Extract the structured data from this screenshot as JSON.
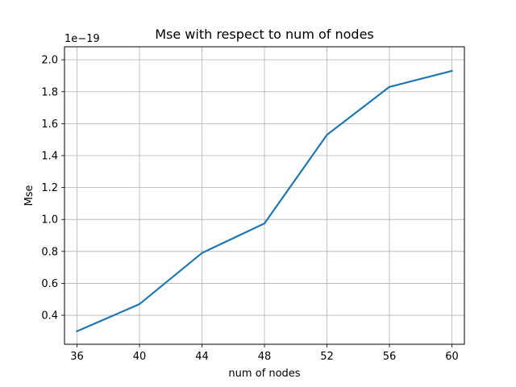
{
  "chart_data": {
    "type": "line",
    "title": "Mse with respect to num of nodes",
    "xlabel": "num of nodes",
    "ylabel": "Mse",
    "y_offset_text": "1e−19",
    "x": [
      36,
      40,
      44,
      48,
      52,
      56,
      60
    ],
    "series": [
      {
        "values": [
          0.3,
          0.47,
          0.79,
          0.975,
          1.53,
          1.83,
          1.93
        ]
      }
    ],
    "xticks": [
      36,
      40,
      44,
      48,
      52,
      56,
      60
    ],
    "xtick_labels": [
      "36",
      "40",
      "44",
      "48",
      "52",
      "56",
      "60"
    ],
    "yticks": [
      0.4,
      0.6,
      0.8,
      1.0,
      1.2,
      1.4,
      1.6,
      1.8,
      2.0
    ],
    "ytick_labels": [
      "0.4",
      "0.6",
      "0.8",
      "1.0",
      "1.2",
      "1.4",
      "1.6",
      "1.8",
      "2.0"
    ],
    "xlim": [
      35.2,
      60.8
    ],
    "ylim": [
      0.2185,
      2.0815
    ],
    "grid": true,
    "colors": {
      "line": "#1f77b4",
      "grid": "#b0b0b0",
      "axes": "#000000"
    }
  }
}
